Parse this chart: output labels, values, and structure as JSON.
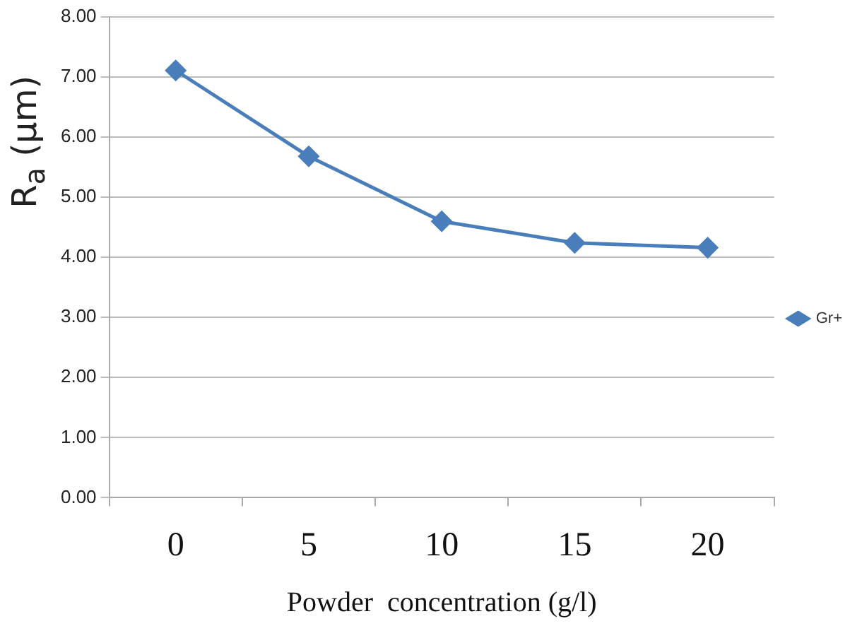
{
  "chart_data": {
    "type": "line",
    "xlabel": "Powder  concentration (g/l)",
    "ylabel": "R$_{a}$ (μm)",
    "categories": [
      "0",
      "5",
      "10",
      "15",
      "20"
    ],
    "series": [
      {
        "name": "Gr+",
        "color": "#4a7ebb",
        "values": [
          7.11,
          5.68,
          4.6,
          4.24,
          4.16
        ]
      }
    ],
    "ylim": [
      0,
      8
    ],
    "yticks": [
      {
        "value": 0,
        "label": "0.00"
      },
      {
        "value": 1,
        "label": "1.00"
      },
      {
        "value": 2,
        "label": "2.00"
      },
      {
        "value": 3,
        "label": "3.00"
      },
      {
        "value": 4,
        "label": "4.00"
      },
      {
        "value": 5,
        "label": "5.00"
      },
      {
        "value": 6,
        "label": "6.00"
      },
      {
        "value": 7,
        "label": "7.00"
      },
      {
        "value": 8,
        "label": "8.00"
      }
    ],
    "grid": "y",
    "legend": "right",
    "marker": "diamond",
    "line_style": "solid"
  }
}
